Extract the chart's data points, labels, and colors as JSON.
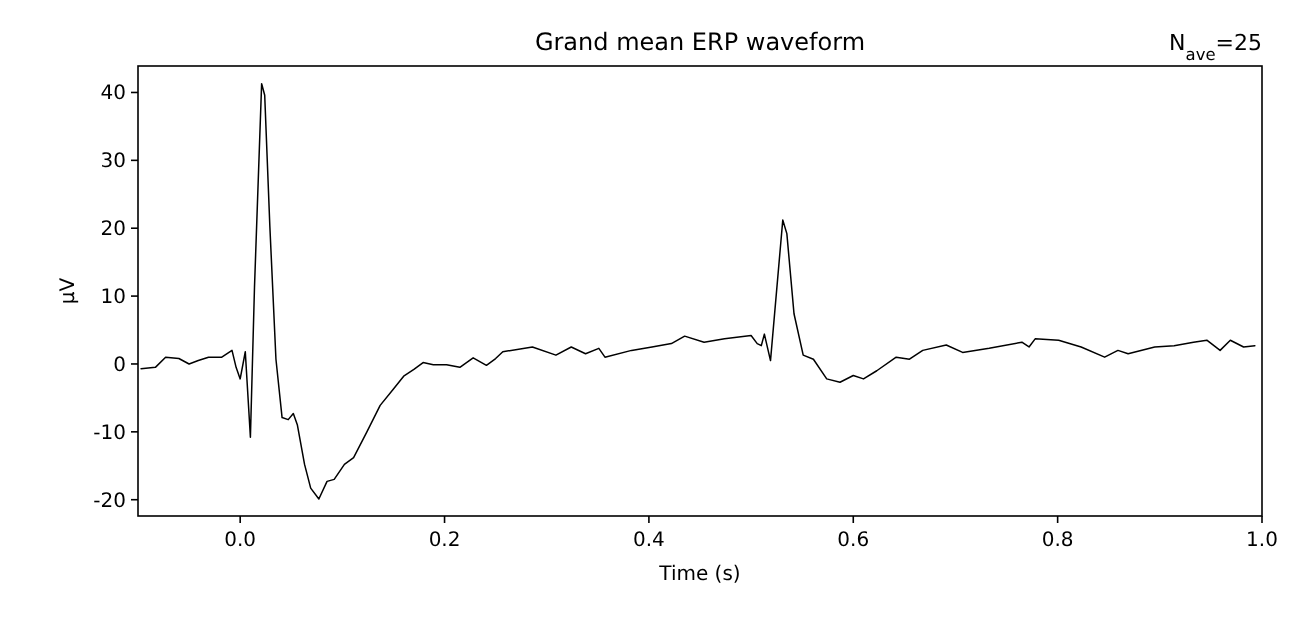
{
  "chart_data": {
    "type": "line",
    "title": "Grand mean ERP waveform",
    "xlabel": "Time (s)",
    "ylabel": "µV",
    "annotations": [
      "N$_{ave}$=25"
    ],
    "xlim": [
      -0.1,
      1.0
    ],
    "ylim": [
      -22.4,
      43.9
    ],
    "xticks": [
      {
        "value": 0,
        "label": "0.0"
      },
      {
        "value": 0.2,
        "label": "0.2"
      },
      {
        "value": 0.4,
        "label": "0.4"
      },
      {
        "value": 0.6,
        "label": "0.6"
      },
      {
        "value": 0.8,
        "label": "0.8"
      },
      {
        "value": 1.0,
        "label": "1.0"
      }
    ],
    "yticks": [
      -20,
      -10,
      0,
      10,
      20,
      30,
      40
    ],
    "grid": false,
    "marker": "none",
    "line_style": "solid",
    "series": [
      {
        "color": "#000000",
        "x": [
          -0.097,
          -0.083,
          -0.073,
          -0.06,
          -0.05,
          -0.041,
          -0.031,
          -0.018,
          -0.008,
          -0.004,
          0,
          0.005,
          0.01,
          0.014,
          0.021,
          0.024,
          0.029,
          0.035,
          0.041,
          0.047,
          0.052,
          0.056,
          0.063,
          0.069,
          0.077,
          0.085,
          0.092,
          0.102,
          0.111,
          0.124,
          0.137,
          0.15,
          0.16,
          0.17,
          0.179,
          0.189,
          0.202,
          0.215,
          0.228,
          0.241,
          0.25,
          0.257,
          0.286,
          0.309,
          0.324,
          0.338,
          0.351,
          0.357,
          0.383,
          0.403,
          0.422,
          0.435,
          0.454,
          0.474,
          0.5,
          0.506,
          0.51,
          0.513,
          0.519,
          0.531,
          0.535,
          0.542,
          0.551,
          0.561,
          0.574,
          0.587,
          0.6,
          0.61,
          0.623,
          0.642,
          0.655,
          0.668,
          0.691,
          0.707,
          0.733,
          0.765,
          0.772,
          0.778,
          0.801,
          0.823,
          0.846,
          0.859,
          0.869,
          0.895,
          0.914,
          0.933,
          0.946,
          0.959,
          0.969,
          0.982,
          0.993
        ],
        "values": [
          -0.7,
          -0.5,
          1.0,
          0.8,
          0.0,
          0.5,
          1.0,
          1.0,
          2.0,
          -0.5,
          -2.2,
          1.8,
          -10.8,
          11.3,
          41.3,
          39.6,
          20.4,
          0.7,
          -7.9,
          -8.2,
          -7.3,
          -9,
          -14.8,
          -18.3,
          -19.9,
          -17.3,
          -17,
          -14.8,
          -13.8,
          -10,
          -6.1,
          -3.7,
          -1.8,
          -0.8,
          0.2,
          -0.1,
          -0.1,
          -0.5,
          0.9,
          -0.2,
          0.8,
          1.8,
          2.5,
          1.3,
          2.5,
          1.5,
          2.3,
          1.0,
          2.0,
          2.5,
          3.0,
          4.1,
          3.2,
          3.7,
          4.2,
          3.0,
          2.7,
          4.4,
          0.5,
          21.2,
          19.2,
          7.4,
          1.3,
          0.7,
          -2.2,
          -2.7,
          -1.7,
          -2.2,
          -1.0,
          1.0,
          0.7,
          2.0,
          2.8,
          1.7,
          2.3,
          3.2,
          2.5,
          3.7,
          3.5,
          2.5,
          1.0,
          2.0,
          1.5,
          2.5,
          2.7,
          3.2,
          3.5,
          2.0,
          3.5,
          2.5,
          2.7
        ]
      }
    ]
  }
}
